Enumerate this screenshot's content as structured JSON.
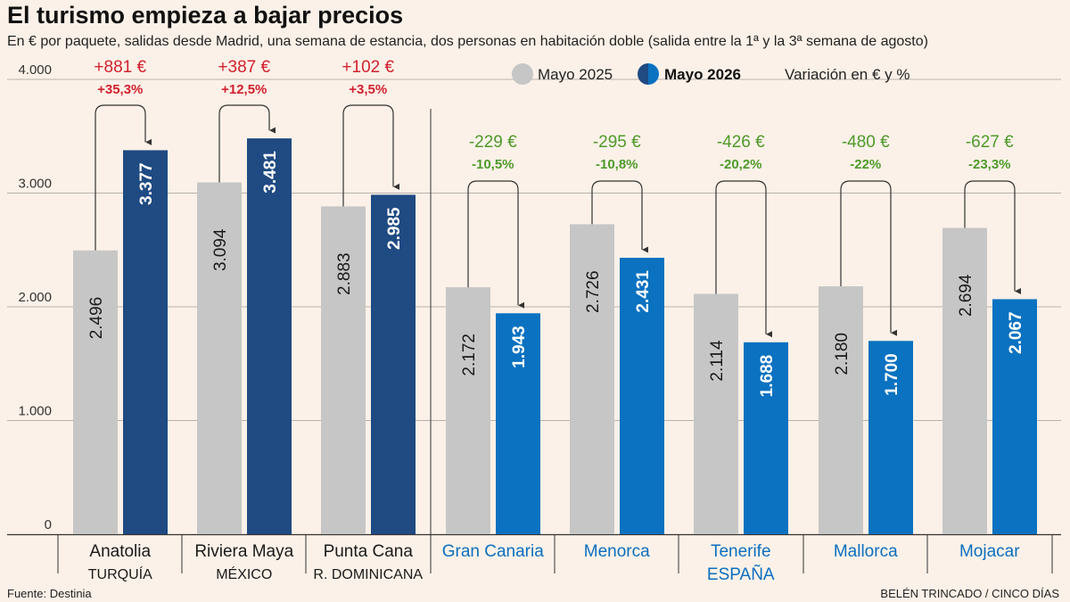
{
  "title": "El turismo empieza a bajar precios",
  "subtitle": "En € por paquete, salidas desde Madrid, una semana de estancia, dos personas en habitación doble (salida entre la 1ª y la 3ª semana de agosto)",
  "footer": {
    "source": "Fuente: Destinia",
    "credit": "BELÉN TRINCADO / CINCO DÍAS"
  },
  "colors": {
    "background": "#fbf1e8",
    "mayo2025": "#c6c6c6",
    "mayo2026_international": "#1f4a82",
    "mayo2026_spain": "#0a72c0",
    "increase_text": "#d2202e",
    "decrease_text": "#4e9a2c",
    "label_spain": "#0a6fbf"
  },
  "chart_data": {
    "type": "bar",
    "title": "El turismo empieza a bajar precios",
    "ylim": [
      0,
      4000
    ],
    "yticks": [
      "0",
      "1.000",
      "2.000",
      "3.000",
      "4.000"
    ],
    "grid": true,
    "legend_position": "top-right",
    "legend": {
      "mayo2025": "Mayo 2025",
      "mayo2026": "Mayo 2026",
      "variation": "Variación en € y %"
    },
    "categories": [
      "Anatolia",
      "Riviera Maya",
      "Punta Cana",
      "Gran Canaria",
      "Menorca",
      "Tenerife",
      "Mallorca",
      "Mojacar"
    ],
    "series": [
      {
        "name": "Mayo 2025",
        "values": [
          2496,
          3094,
          2883,
          2172,
          2726,
          2114,
          2180,
          2694
        ],
        "labels": [
          "2.496",
          "3.094",
          "2.883",
          "2.172",
          "2.726",
          "2.114",
          "2.180",
          "2.694"
        ]
      },
      {
        "name": "Mayo 2026",
        "values": [
          3377,
          3481,
          2985,
          1943,
          2431,
          1688,
          1700,
          2067
        ],
        "labels": [
          "3.377",
          "3.481",
          "2.985",
          "1.943",
          "2.431",
          "1.688",
          "1.700",
          "2.067"
        ]
      }
    ],
    "variation_eur": [
      "+881 €",
      "+387 €",
      "+102 €",
      "-229 €",
      "-295 €",
      "-426 €",
      "-480 €",
      "-627 €"
    ],
    "variation_pct": [
      "+35,3%",
      "+12,5%",
      "+3,5%",
      "-10,5%",
      "-10,8%",
      "-20,2%",
      "-22%",
      "-23,3%"
    ],
    "country_labels": [
      "TURQUÍA",
      "MÉXICO",
      "R. DOMINICANA",
      "ESPAÑA"
    ]
  }
}
